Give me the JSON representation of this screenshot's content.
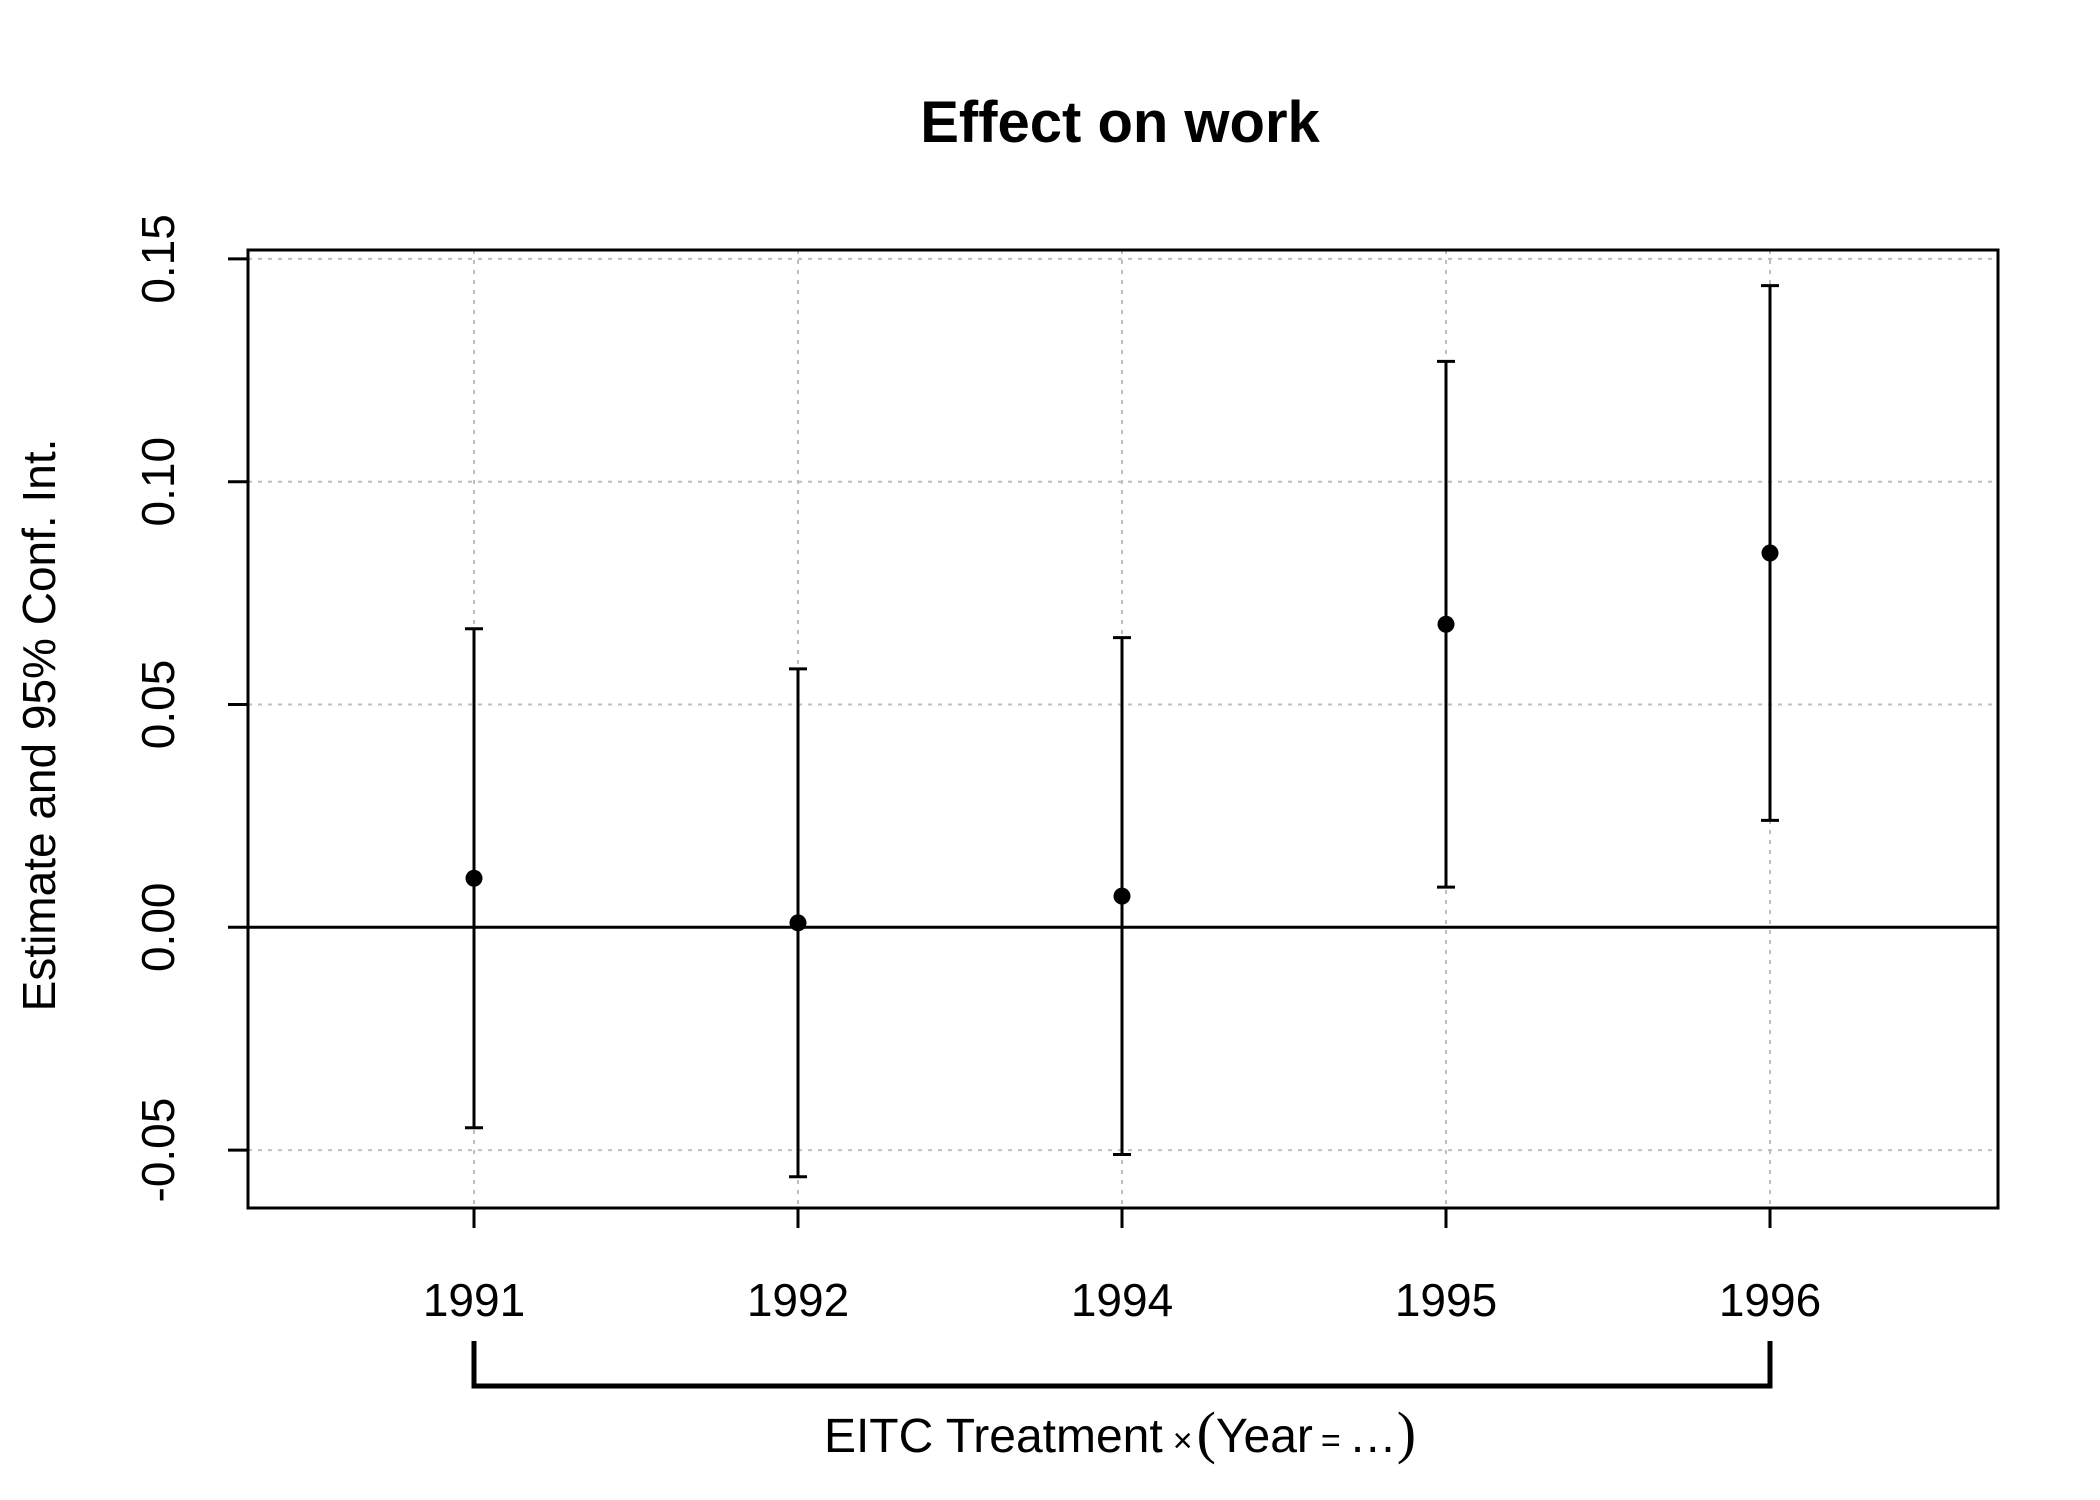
{
  "chart_data": {
    "type": "scatter",
    "title": "Effect on work",
    "ylabel": "Estimate and 95% Conf. Int.",
    "categories": [
      "1991",
      "1992",
      "1994",
      "1995",
      "1996"
    ],
    "estimates": [
      0.011,
      0.001,
      0.007,
      0.068,
      0.084
    ],
    "ci_lower": [
      -0.045,
      -0.056,
      -0.051,
      0.009,
      0.024
    ],
    "ci_upper": [
      0.067,
      0.058,
      0.065,
      0.127,
      0.144
    ],
    "ylim": [
      -0.063,
      0.152
    ],
    "yticks": [
      -0.05,
      0.0,
      0.05,
      0.1,
      0.15
    ],
    "ytick_labels": [
      "-0.05",
      "0.00",
      "0.05",
      "0.10",
      "0.15"
    ],
    "reference_line": 0.0,
    "grid": true,
    "bracket_label": {
      "main": "EITC Treatment",
      "times": "×",
      "open": "(",
      "year": "Year",
      "eq": "=",
      "dots": "…",
      "close": ")"
    },
    "colors": {
      "points": "#000000",
      "grid": "#bebebe",
      "axis": "#000000"
    }
  }
}
